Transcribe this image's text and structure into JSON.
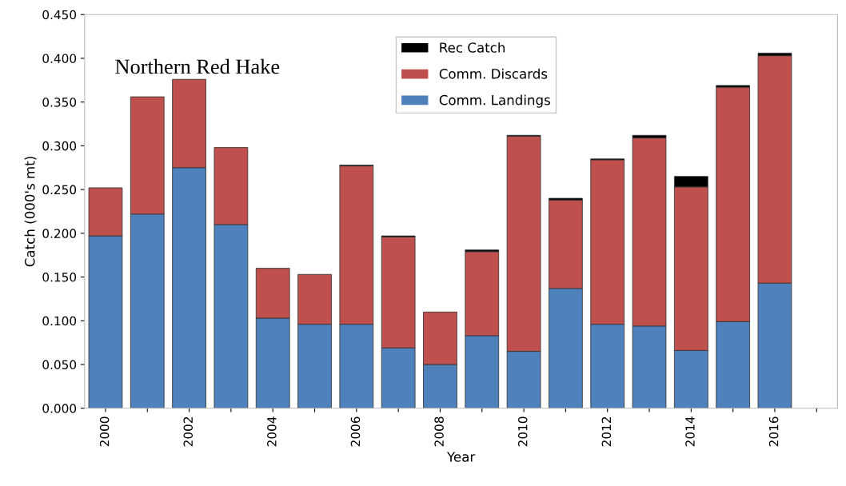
{
  "chart_data": {
    "type": "bar",
    "title": "Northern Red Hake",
    "xlabel": "Year",
    "ylabel": "Catch (000's mt)",
    "stacked": true,
    "categories": [
      "2000",
      null,
      "2002",
      null,
      "2004",
      null,
      "2006",
      null,
      "2008",
      null,
      "2010",
      null,
      "2012",
      null,
      "2014",
      null,
      "2016",
      null
    ],
    "series": [
      {
        "name": "Comm. Landings",
        "color": "#4f81bd",
        "values": [
          0.197,
          0.222,
          0.275,
          0.21,
          0.103,
          0.096,
          0.096,
          0.069,
          0.05,
          0.083,
          0.065,
          0.137,
          0.096,
          0.094,
          0.066,
          0.099,
          0.143,
          null
        ]
      },
      {
        "name": "Comm. Discards",
        "color": "#c0504d",
        "values": [
          0.055,
          0.134,
          0.101,
          0.088,
          0.057,
          0.057,
          0.181,
          0.127,
          0.06,
          0.096,
          0.246,
          0.101,
          0.188,
          0.215,
          0.187,
          0.268,
          0.26,
          null
        ]
      },
      {
        "name": "Rec Catch",
        "color": "#000000",
        "values": [
          0,
          0,
          0,
          0,
          0,
          0,
          0.001,
          0.001,
          0,
          0.002,
          0.001,
          0.002,
          0.001,
          0.003,
          0.012,
          0.002,
          0.003,
          null
        ]
      }
    ],
    "ylim": [
      0,
      0.45
    ],
    "yticks": [
      {
        "value": 0,
        "label": "0.000"
      },
      {
        "value": 0.05,
        "label": "0.050"
      },
      {
        "value": 0.1,
        "label": "0.100"
      },
      {
        "value": 0.15,
        "label": "0.150"
      },
      {
        "value": 0.2,
        "label": "0.200"
      },
      {
        "value": 0.25,
        "label": "0.250"
      },
      {
        "value": 0.3,
        "label": "0.300"
      },
      {
        "value": 0.35,
        "label": "0.350"
      },
      {
        "value": 0.4,
        "label": "0.400"
      },
      {
        "value": 0.45,
        "label": "0.450"
      }
    ],
    "grid": false,
    "legend": "top"
  }
}
